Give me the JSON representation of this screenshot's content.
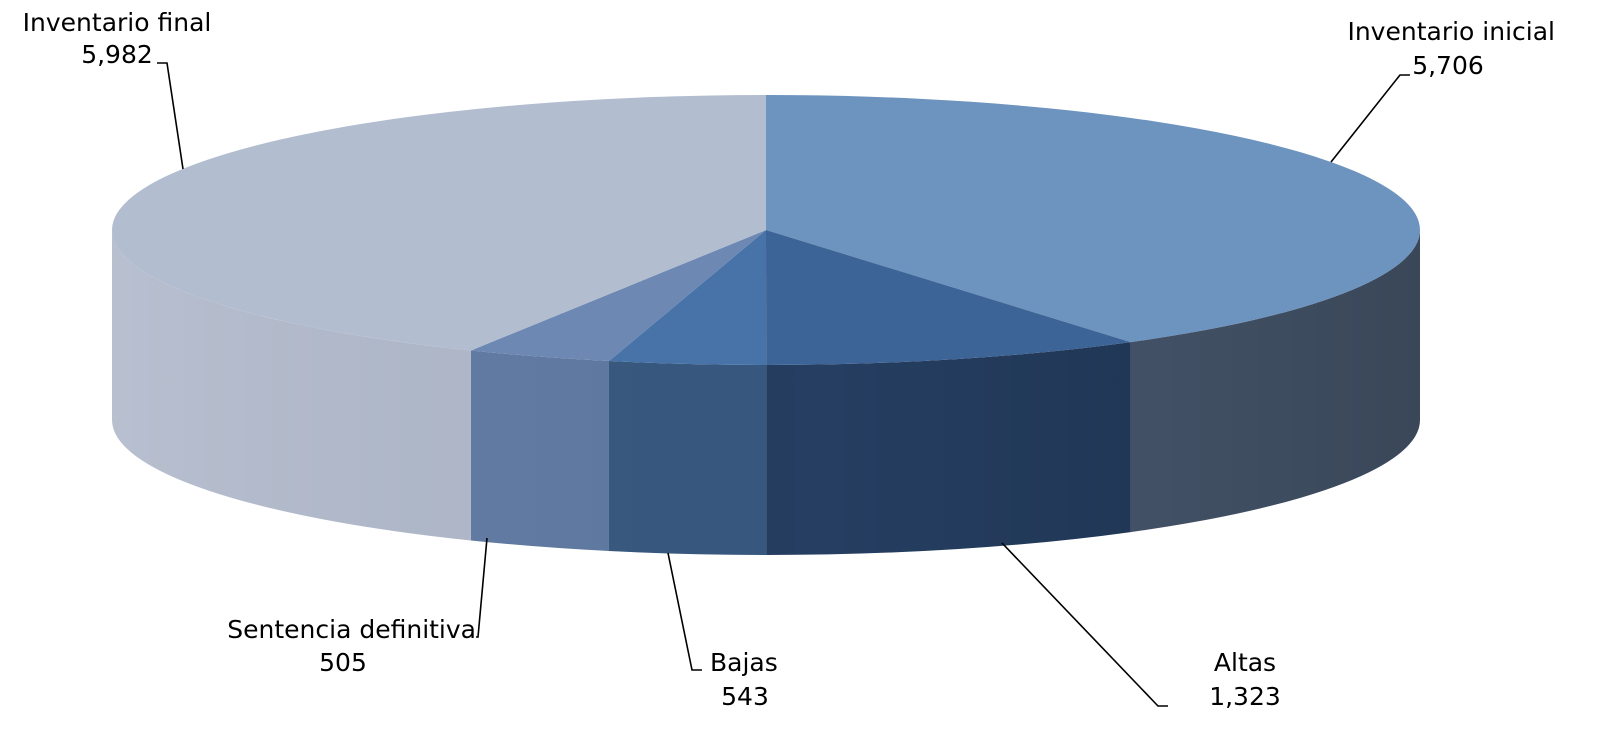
{
  "chart_data": {
    "type": "pie",
    "style": "3d",
    "title": "",
    "slices": [
      {
        "label": "Inventario inicial",
        "value": 5706,
        "value_label": "5,706",
        "color": "#6d93bf",
        "side_color": "#4a5b72"
      },
      {
        "label": "Altas",
        "value": 1323,
        "value_label": "1,323",
        "color": "#3d6496",
        "side_color": "#253e61"
      },
      {
        "label": "Bajas",
        "value": 543,
        "value_label": "543",
        "color": "#4773a8",
        "side_color": "#37587f"
      },
      {
        "label": "Sentencia definitiva",
        "value": 505,
        "value_label": "505",
        "color": "#6d88b3",
        "side_color": "#5f7aa3"
      },
      {
        "label": "Inventario final",
        "value": 5982,
        "value_label": "5,982",
        "color": "#b2bdd0",
        "side_color": "#b0b9cb"
      }
    ]
  }
}
